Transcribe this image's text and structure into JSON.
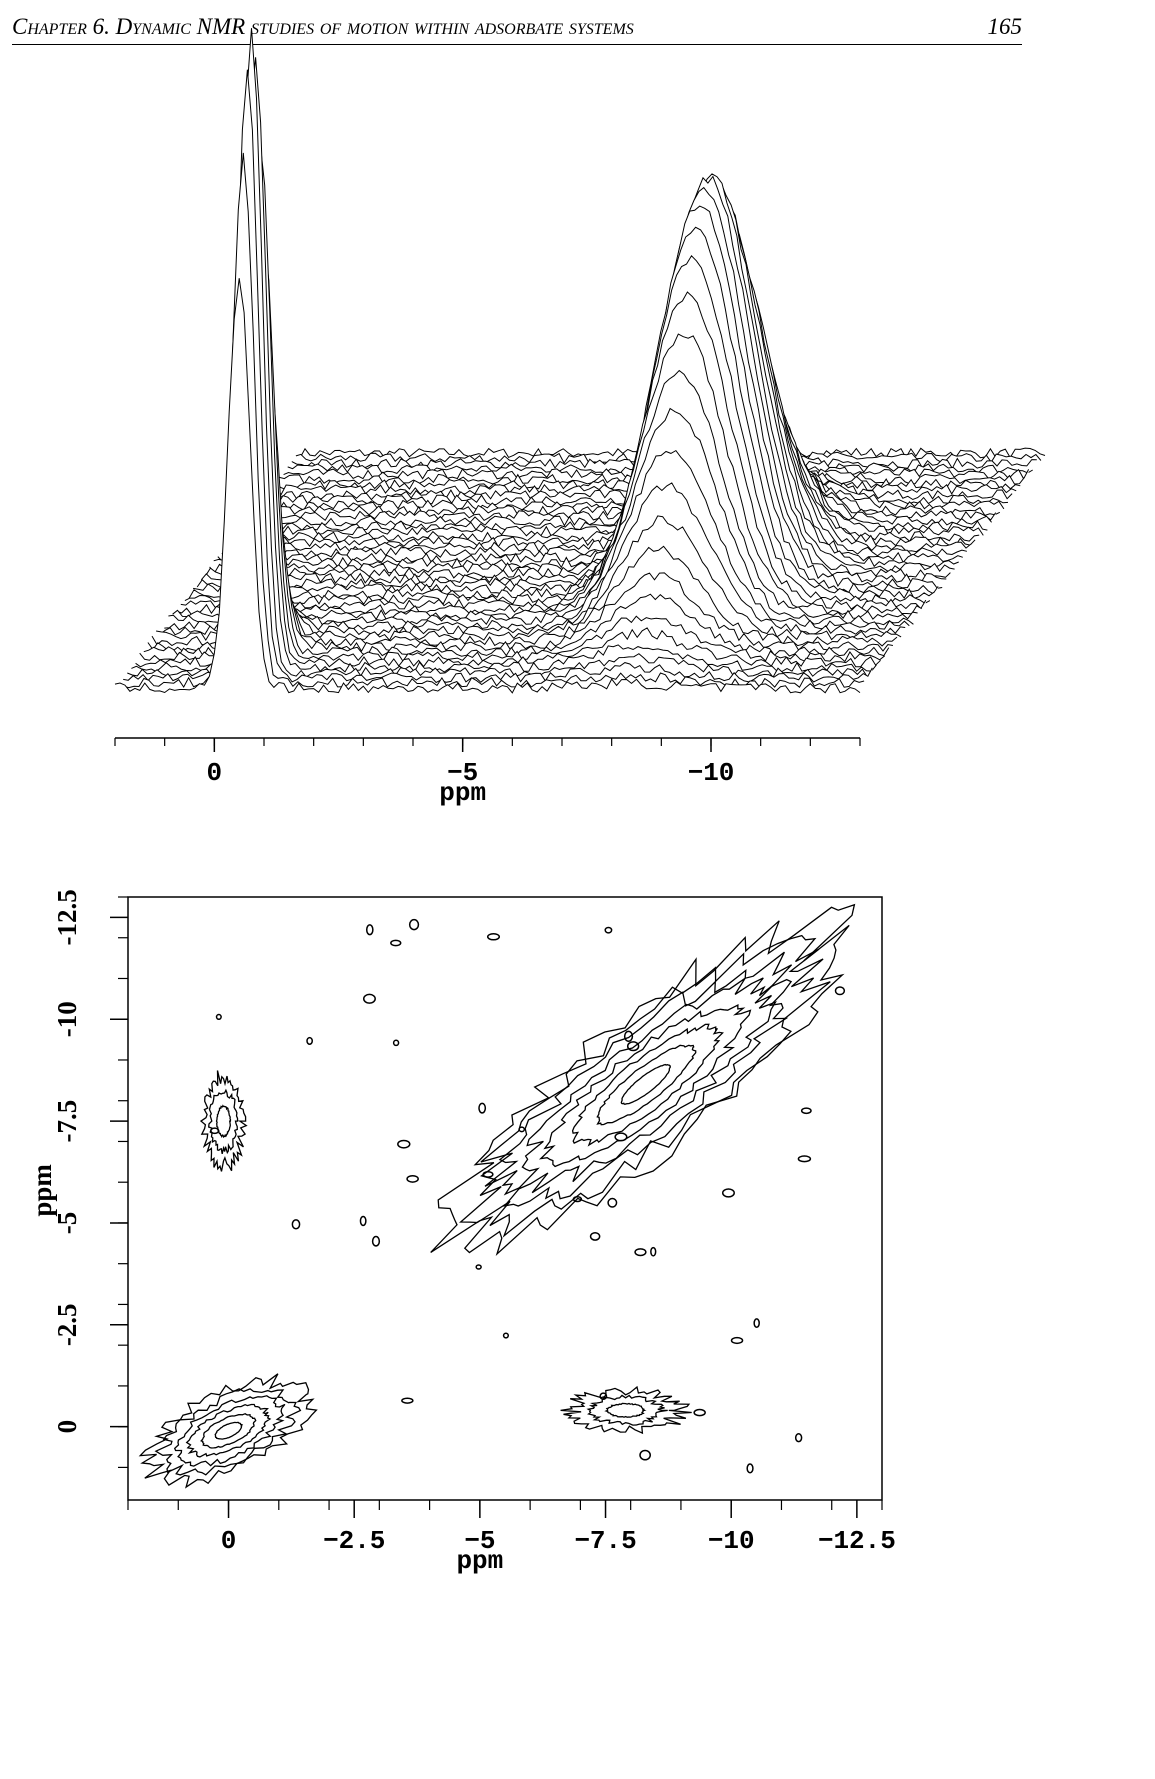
{
  "header": {
    "chapter": "Chapter 6. Dynamic NMR studies of motion within adsorbate systems",
    "page": "165"
  },
  "chart_data": [
    {
      "type": "stacked-spectra",
      "xlabel": "ppm",
      "xlim": [
        2,
        -13
      ],
      "xticks": [
        0,
        {
          "value": -5,
          "label": "−5"
        },
        {
          "value": -10,
          "label": "−10"
        }
      ]
    },
    {
      "type": "contour",
      "xlabel": "ppm",
      "ylabel": "ppm",
      "xlim": [
        2,
        -13
      ],
      "ylim": [
        1.8,
        -13
      ],
      "xticks": [
        0,
        {
          "value": -2.5,
          "label": "−2.5"
        },
        {
          "value": -5,
          "label": "−5"
        },
        {
          "value": -7.5,
          "label": "−7.5"
        },
        {
          "value": -10,
          "label": "−10"
        },
        {
          "value": -12.5,
          "label": "−12.5"
        }
      ],
      "yticks": [
        0,
        {
          "value": -2.5,
          "label": "-2.5"
        },
        {
          "value": -5,
          "label": "-5"
        },
        {
          "value": -7.5,
          "label": "-7.5"
        },
        {
          "value": -10,
          "label": "-10"
        },
        {
          "value": -12.5,
          "label": "-12.5"
        }
      ]
    }
  ]
}
